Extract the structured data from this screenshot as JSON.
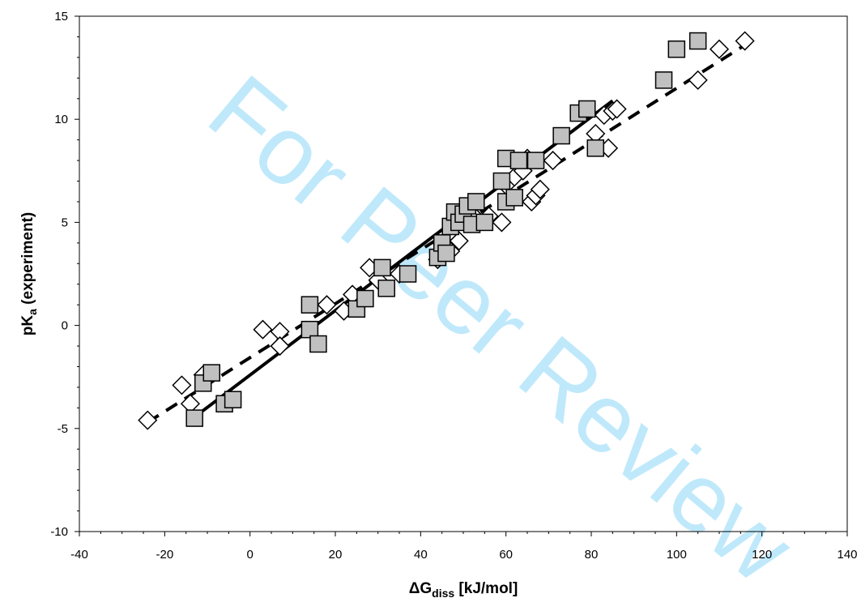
{
  "watermark": "For Peer Review",
  "chart_data": {
    "type": "scatter",
    "xlabel": "ΔG",
    "xlabel_sub": "diss",
    "xlabel_rest": " [kJ/mol]",
    "ylabel": "pK",
    "ylabel_sub": "a",
    "ylabel_rest": " (experiment)",
    "xlim": [
      -40,
      140
    ],
    "ylim": [
      -10,
      15
    ],
    "xticks": [
      -40,
      -20,
      0,
      20,
      40,
      60,
      80,
      100,
      120,
      140
    ],
    "yticks": [
      -10,
      -5,
      0,
      5,
      10,
      15
    ],
    "grid": false,
    "series": [
      {
        "marker": "square",
        "fill": "#c0c0c0",
        "points": [
          [
            -13,
            -4.5
          ],
          [
            -11,
            -2.8
          ],
          [
            -9,
            -2.3
          ],
          [
            -6,
            -3.8
          ],
          [
            -4,
            -3.6
          ],
          [
            14,
            1.0
          ],
          [
            14,
            -0.2
          ],
          [
            16,
            -0.9
          ],
          [
            25,
            0.8
          ],
          [
            27,
            1.3
          ],
          [
            31,
            2.8
          ],
          [
            32,
            1.8
          ],
          [
            37,
            2.5
          ],
          [
            44,
            3.3
          ],
          [
            45,
            4.0
          ],
          [
            46,
            3.5
          ],
          [
            47,
            4.8
          ],
          [
            48,
            5.5
          ],
          [
            49,
            5.0
          ],
          [
            50,
            5.4
          ],
          [
            51,
            5.8
          ],
          [
            52,
            4.9
          ],
          [
            53,
            6.0
          ],
          [
            55,
            5.0
          ],
          [
            59,
            7.0
          ],
          [
            60,
            6.0
          ],
          [
            60,
            8.1
          ],
          [
            62,
            6.2
          ],
          [
            63,
            8.0
          ],
          [
            67,
            8.0
          ],
          [
            73,
            9.2
          ],
          [
            77,
            10.3
          ],
          [
            79,
            10.5
          ],
          [
            81,
            8.6
          ],
          [
            97,
            11.9
          ],
          [
            100,
            13.4
          ],
          [
            105,
            13.8
          ]
        ]
      },
      {
        "marker": "diamond",
        "fill": "#ffffff",
        "points": [
          [
            -24,
            -4.6
          ],
          [
            -16,
            -2.9
          ],
          [
            -14,
            -3.8
          ],
          [
            -11,
            -2.4
          ],
          [
            3,
            -0.2
          ],
          [
            7,
            -0.3
          ],
          [
            7,
            -1.0
          ],
          [
            18,
            1.0
          ],
          [
            22,
            0.7
          ],
          [
            24,
            1.5
          ],
          [
            28,
            2.8
          ],
          [
            30,
            2.2
          ],
          [
            35,
            2.5
          ],
          [
            44,
            3.2
          ],
          [
            47,
            3.6
          ],
          [
            49,
            4.1
          ],
          [
            53,
            5.2
          ],
          [
            56,
            5.3
          ],
          [
            59,
            5.0
          ],
          [
            60,
            6.8
          ],
          [
            62,
            7.2
          ],
          [
            64,
            7.5
          ],
          [
            65,
            8.1
          ],
          [
            66,
            6.0
          ],
          [
            67,
            6.3
          ],
          [
            68,
            6.6
          ],
          [
            71,
            8.0
          ],
          [
            81,
            9.3
          ],
          [
            83,
            10.2
          ],
          [
            84,
            8.6
          ],
          [
            85,
            10.4
          ],
          [
            86,
            10.5
          ],
          [
            105,
            11.9
          ],
          [
            110,
            13.4
          ],
          [
            116,
            13.8
          ]
        ]
      }
    ],
    "fit_lines": [
      {
        "style": "solid",
        "x": [
          -14,
          85
        ],
        "y": [
          -4.6,
          10.9
        ]
      },
      {
        "style": "dashed",
        "x": [
          -24,
          116
        ],
        "y": [
          -4.7,
          13.6
        ]
      }
    ]
  }
}
